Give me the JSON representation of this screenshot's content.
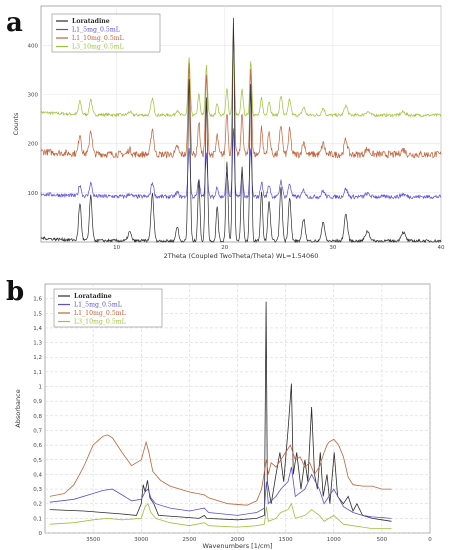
{
  "panels": {
    "a": "a",
    "b": "b"
  },
  "chart_data": [
    {
      "id": "a",
      "type": "line",
      "xlabel": "2Theta (Coupled TwoTheta/Theta) WL=1.54060",
      "ylabel": "Counts",
      "xlim": [
        3,
        40
      ],
      "ylim": [
        0,
        480
      ],
      "xticks": [
        10,
        20,
        30,
        40
      ],
      "yticks": [
        100,
        200,
        300,
        400
      ],
      "grid": true,
      "legend": "top-left",
      "series": [
        {
          "name": "Loratadine",
          "color": "#2b2b2b",
          "baseline": 2,
          "amp": 1.0,
          "noise": 3
        },
        {
          "name": "L1_5mg_0.5mL",
          "color": "#5a4fd6",
          "baseline": 92,
          "amp": 0.3,
          "noise": 4
        },
        {
          "name": "L1_10mg_0.5mL",
          "color": "#c0623a",
          "baseline": 178,
          "amp": 0.55,
          "noise": 7
        },
        {
          "name": "L3_10mg_0.5mL",
          "color": "#9cc23a",
          "baseline": 258,
          "amp": 0.35,
          "noise": 3
        }
      ],
      "peaks": [
        {
          "x": 6.6,
          "h": 75,
          "w": 0.12
        },
        {
          "x": 7.6,
          "h": 90,
          "w": 0.12
        },
        {
          "x": 11.2,
          "h": 18,
          "w": 0.15
        },
        {
          "x": 13.3,
          "h": 95,
          "w": 0.13
        },
        {
          "x": 15.6,
          "h": 30,
          "w": 0.12
        },
        {
          "x": 16.7,
          "h": 330,
          "w": 0.1
        },
        {
          "x": 17.6,
          "h": 120,
          "w": 0.1
        },
        {
          "x": 18.3,
          "h": 290,
          "w": 0.1
        },
        {
          "x": 19.3,
          "h": 70,
          "w": 0.1
        },
        {
          "x": 20.2,
          "h": 160,
          "w": 0.1
        },
        {
          "x": 20.8,
          "h": 455,
          "w": 0.09
        },
        {
          "x": 21.6,
          "h": 150,
          "w": 0.1
        },
        {
          "x": 22.4,
          "h": 320,
          "w": 0.09
        },
        {
          "x": 23.4,
          "h": 100,
          "w": 0.1
        },
        {
          "x": 24.1,
          "h": 80,
          "w": 0.12
        },
        {
          "x": 25.2,
          "h": 110,
          "w": 0.12
        },
        {
          "x": 26.0,
          "h": 90,
          "w": 0.12
        },
        {
          "x": 27.3,
          "h": 45,
          "w": 0.14
        },
        {
          "x": 29.1,
          "h": 40,
          "w": 0.14
        },
        {
          "x": 31.2,
          "h": 55,
          "w": 0.15
        },
        {
          "x": 33.2,
          "h": 20,
          "w": 0.2
        },
        {
          "x": 36.5,
          "h": 18,
          "w": 0.2
        }
      ]
    },
    {
      "id": "b",
      "type": "line",
      "xlabel": "Wavenumbers [1/cm]",
      "ylabel": "Absorbance",
      "xlim": [
        4000,
        0
      ],
      "ylim": [
        0,
        1.7
      ],
      "xticks": [
        3500,
        3000,
        2500,
        2000,
        1500,
        1000,
        500,
        0
      ],
      "yticks": [
        0,
        0.1,
        0.2,
        0.3,
        0.4,
        0.5,
        0.6,
        0.7,
        0.8,
        0.9,
        1,
        1.1,
        1.2,
        1.3,
        1.4,
        1.5,
        1.6
      ],
      "ytick_labels": [
        "0",
        "0,1",
        "0,2",
        "0,3",
        "0,4",
        "0,5",
        "0,6",
        "0,7",
        "0,8",
        "0,9",
        "1",
        "1,1",
        "1,2",
        "1,3",
        "1,4",
        "1,5",
        "1,6"
      ],
      "grid": true,
      "legend": "top-left",
      "series": [
        {
          "name": "Loratadine",
          "color": "#2b2b2b",
          "points": [
            [
              3950,
              0.16
            ],
            [
              3600,
              0.15
            ],
            [
              3200,
              0.13
            ],
            [
              3050,
              0.12
            ],
            [
              3000,
              0.2
            ],
            [
              2980,
              0.33
            ],
            [
              2960,
              0.28
            ],
            [
              2935,
              0.36
            ],
            [
              2910,
              0.24
            ],
            [
              2870,
              0.2
            ],
            [
              2820,
              0.12
            ],
            [
              2600,
              0.11
            ],
            [
              2400,
              0.1
            ],
            [
              2345,
              0.12
            ],
            [
              2320,
              0.1
            ],
            [
              2000,
              0.09
            ],
            [
              1800,
              0.1
            ],
            [
              1720,
              0.12
            ],
            [
              1703,
              1.58
            ],
            [
              1690,
              0.35
            ],
            [
              1650,
              0.2
            ],
            [
              1600,
              0.4
            ],
            [
              1560,
              0.55
            ],
            [
              1520,
              0.35
            ],
            [
              1475,
              0.7
            ],
            [
              1440,
              1.02
            ],
            [
              1420,
              0.4
            ],
            [
              1385,
              0.55
            ],
            [
              1340,
              0.3
            ],
            [
              1300,
              0.5
            ],
            [
              1270,
              0.35
            ],
            [
              1230,
              0.86
            ],
            [
              1200,
              0.4
            ],
            [
              1170,
              0.3
            ],
            [
              1140,
              0.55
            ],
            [
              1110,
              0.25
            ],
            [
              1070,
              0.4
            ],
            [
              1040,
              0.2
            ],
            [
              995,
              0.55
            ],
            [
              960,
              0.25
            ],
            [
              900,
              0.2
            ],
            [
              850,
              0.25
            ],
            [
              800,
              0.15
            ],
            [
              760,
              0.2
            ],
            [
              700,
              0.12
            ],
            [
              600,
              0.1
            ],
            [
              500,
              0.09
            ],
            [
              400,
              0.08
            ]
          ]
        },
        {
          "name": "L1_5mg_0.5mL",
          "color": "#5a4fd6",
          "points": [
            [
              3950,
              0.21
            ],
            [
              3700,
              0.23
            ],
            [
              3500,
              0.27
            ],
            [
              3400,
              0.29
            ],
            [
              3300,
              0.3
            ],
            [
              3200,
              0.26
            ],
            [
              3100,
              0.22
            ],
            [
              3000,
              0.23
            ],
            [
              2960,
              0.28
            ],
            [
              2930,
              0.3
            ],
            [
              2900,
              0.24
            ],
            [
              2850,
              0.2
            ],
            [
              2700,
              0.17
            ],
            [
              2500,
              0.15
            ],
            [
              2345,
              0.17
            ],
            [
              2300,
              0.14
            ],
            [
              2000,
              0.12
            ],
            [
              1800,
              0.14
            ],
            [
              1720,
              0.17
            ],
            [
              1700,
              0.35
            ],
            [
              1680,
              0.2
            ],
            [
              1600,
              0.25
            ],
            [
              1550,
              0.3
            ],
            [
              1475,
              0.35
            ],
            [
              1440,
              0.45
            ],
            [
              1400,
              0.25
            ],
            [
              1300,
              0.3
            ],
            [
              1230,
              0.4
            ],
            [
              1150,
              0.3
            ],
            [
              1100,
              0.2
            ],
            [
              1050,
              0.25
            ],
            [
              1000,
              0.3
            ],
            [
              900,
              0.18
            ],
            [
              800,
              0.14
            ],
            [
              700,
              0.12
            ],
            [
              600,
              0.11
            ],
            [
              400,
              0.1
            ]
          ]
        },
        {
          "name": "L1_10mg_0.5mL",
          "color": "#c0623a",
          "points": [
            [
              3950,
              0.25
            ],
            [
              3800,
              0.27
            ],
            [
              3700,
              0.33
            ],
            [
              3600,
              0.45
            ],
            [
              3500,
              0.6
            ],
            [
              3400,
              0.66
            ],
            [
              3350,
              0.67
            ],
            [
              3300,
              0.65
            ],
            [
              3200,
              0.55
            ],
            [
              3100,
              0.46
            ],
            [
              3000,
              0.5
            ],
            [
              2950,
              0.62
            ],
            [
              2920,
              0.55
            ],
            [
              2880,
              0.42
            ],
            [
              2800,
              0.36
            ],
            [
              2700,
              0.32
            ],
            [
              2500,
              0.28
            ],
            [
              2345,
              0.26
            ],
            [
              2300,
              0.24
            ],
            [
              2100,
              0.2
            ],
            [
              1900,
              0.19
            ],
            [
              1800,
              0.22
            ],
            [
              1750,
              0.3
            ],
            [
              1700,
              0.5
            ],
            [
              1680,
              0.4
            ],
            [
              1650,
              0.48
            ],
            [
              1600,
              0.45
            ],
            [
              1550,
              0.5
            ],
            [
              1500,
              0.55
            ],
            [
              1450,
              0.6
            ],
            [
              1400,
              0.5
            ],
            [
              1350,
              0.52
            ],
            [
              1300,
              0.45
            ],
            [
              1250,
              0.48
            ],
            [
              1200,
              0.4
            ],
            [
              1150,
              0.45
            ],
            [
              1100,
              0.55
            ],
            [
              1070,
              0.6
            ],
            [
              1050,
              0.62
            ],
            [
              1000,
              0.64
            ],
            [
              950,
              0.6
            ],
            [
              900,
              0.52
            ],
            [
              850,
              0.38
            ],
            [
              800,
              0.33
            ],
            [
              700,
              0.32
            ],
            [
              600,
              0.32
            ],
            [
              500,
              0.3
            ],
            [
              400,
              0.3
            ]
          ]
        },
        {
          "name": "L3_10mg_0.5mL",
          "color": "#9cc23a",
          "points": [
            [
              3950,
              0.06
            ],
            [
              3700,
              0.07
            ],
            [
              3500,
              0.09
            ],
            [
              3350,
              0.1
            ],
            [
              3200,
              0.09
            ],
            [
              3000,
              0.1
            ],
            [
              2960,
              0.18
            ],
            [
              2930,
              0.2
            ],
            [
              2900,
              0.14
            ],
            [
              2850,
              0.1
            ],
            [
              2700,
              0.07
            ],
            [
              2500,
              0.05
            ],
            [
              2345,
              0.07
            ],
            [
              2300,
              0.05
            ],
            [
              2000,
              0.04
            ],
            [
              1800,
              0.05
            ],
            [
              1720,
              0.06
            ],
            [
              1700,
              0.18
            ],
            [
              1680,
              0.08
            ],
            [
              1600,
              0.1
            ],
            [
              1550,
              0.14
            ],
            [
              1475,
              0.16
            ],
            [
              1440,
              0.2
            ],
            [
              1400,
              0.1
            ],
            [
              1300,
              0.12
            ],
            [
              1230,
              0.16
            ],
            [
              1150,
              0.12
            ],
            [
              1100,
              0.08
            ],
            [
              1050,
              0.1
            ],
            [
              1000,
              0.12
            ],
            [
              900,
              0.06
            ],
            [
              800,
              0.05
            ],
            [
              700,
              0.04
            ],
            [
              600,
              0.03
            ],
            [
              400,
              0.03
            ]
          ]
        }
      ]
    }
  ]
}
